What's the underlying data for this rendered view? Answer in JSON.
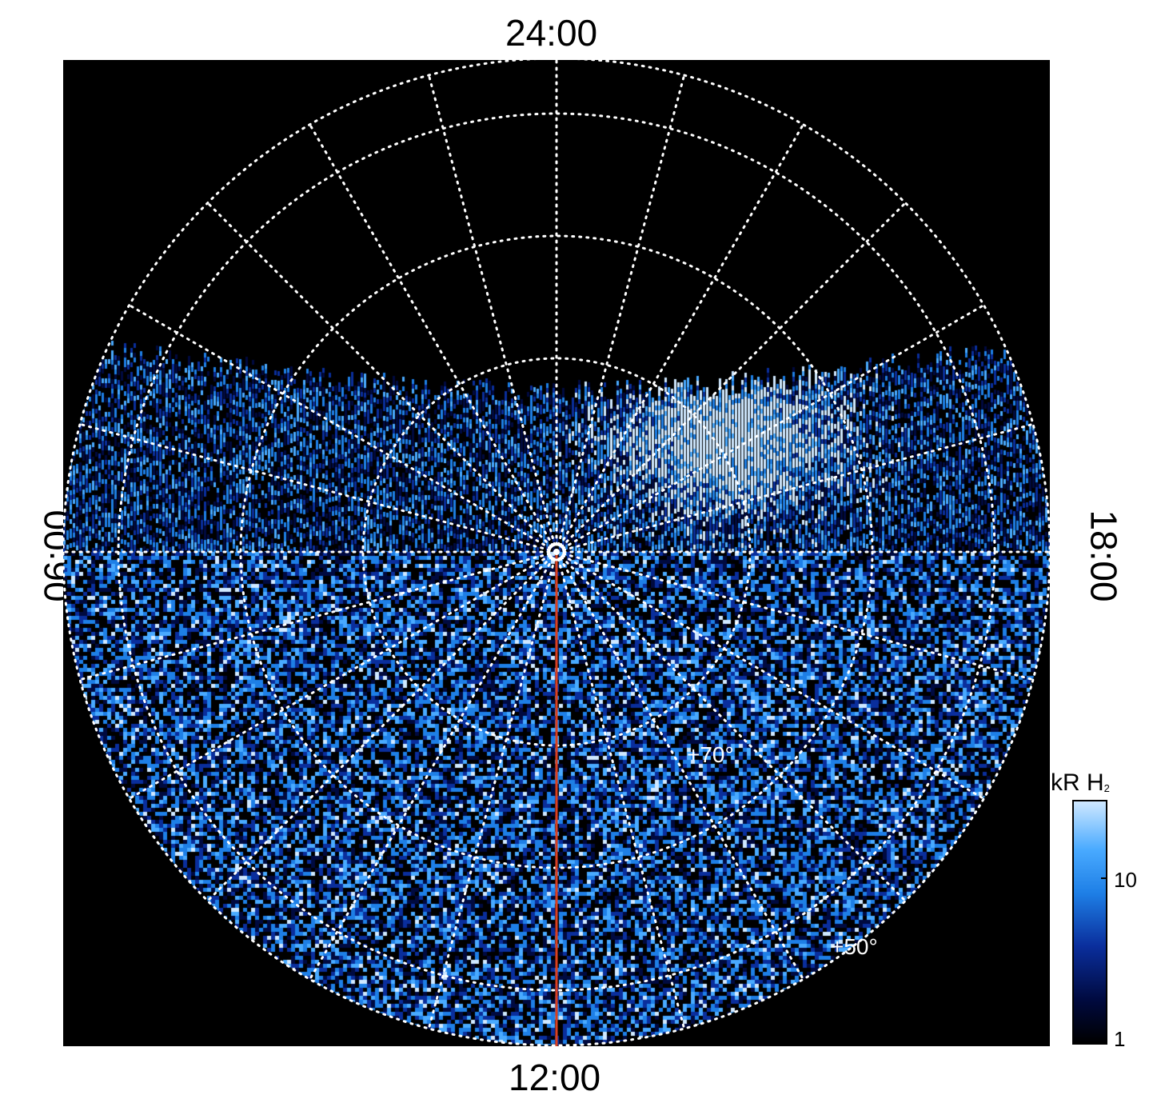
{
  "local_time_labels": {
    "top": "24:00",
    "bottom": "12:00",
    "left": "06:00",
    "right": "18:00"
  },
  "latitude_labels": [
    "+70°",
    "+50°"
  ],
  "colorbar": {
    "title_main": "kR H",
    "title_sub": "2",
    "ticks": [
      "10",
      "1"
    ],
    "scale": "log",
    "colors": [
      "#000000",
      "#000a40",
      "#0a2e9c",
      "#1e7fe6",
      "#49aaff",
      "#cfe8ff"
    ]
  },
  "colors": {
    "background": "#000000",
    "grid": "#ffffff",
    "meridian_line": "#d94020"
  }
}
